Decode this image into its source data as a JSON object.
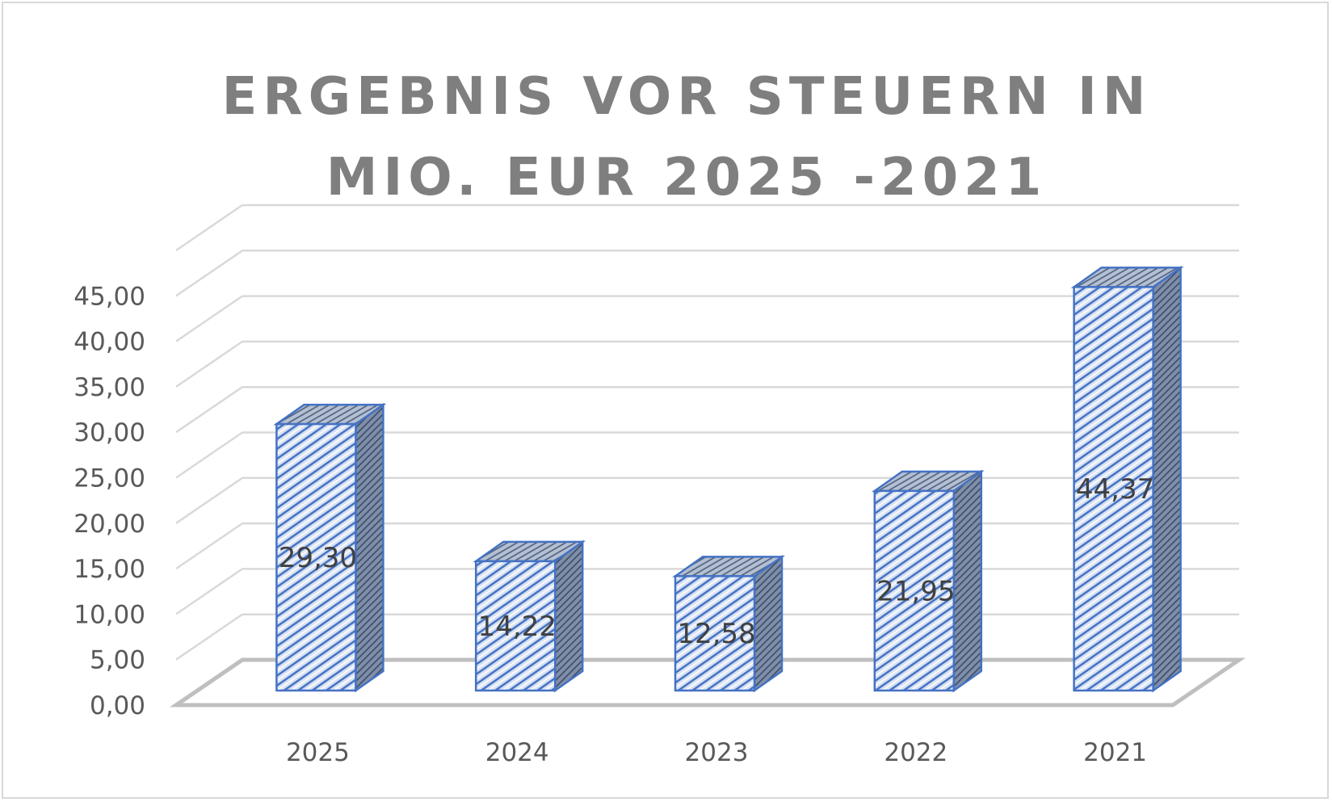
{
  "chart_data": {
    "type": "bar",
    "title": "ERGEBNIS VOR STEUERN IN MIO. EUR 2025 -2021",
    "categories": [
      "2025",
      "2024",
      "2023",
      "2022",
      "2021"
    ],
    "values": [
      29.3,
      14.22,
      12.58,
      21.95,
      44.37
    ],
    "data_labels": [
      "29,30",
      "14,22",
      "12,58",
      "21,95",
      "44,37"
    ],
    "y_ticks": [
      0,
      5,
      10,
      15,
      20,
      25,
      30,
      35,
      40,
      45
    ],
    "y_tick_labels": [
      "0,00",
      "5,00",
      "10,00",
      "15,00",
      "20,00",
      "25,00",
      "30,00",
      "35,00",
      "40,00",
      "45,00"
    ],
    "ylim": [
      0,
      45
    ],
    "xlabel": "",
    "ylabel": "",
    "grid": true,
    "legend": "none",
    "style": "3d-column",
    "colors": {
      "bar_border": "#4472c4",
      "bar_fill": "#dae3f3",
      "bar_hatch": "#4472c4",
      "bar_side": "#8497b0",
      "bar_top": "#adb9ca",
      "grid": "#d9d9d9",
      "floor": "#bfbfbf",
      "title": "#7f7f7f",
      "axis_text": "#595959"
    }
  }
}
